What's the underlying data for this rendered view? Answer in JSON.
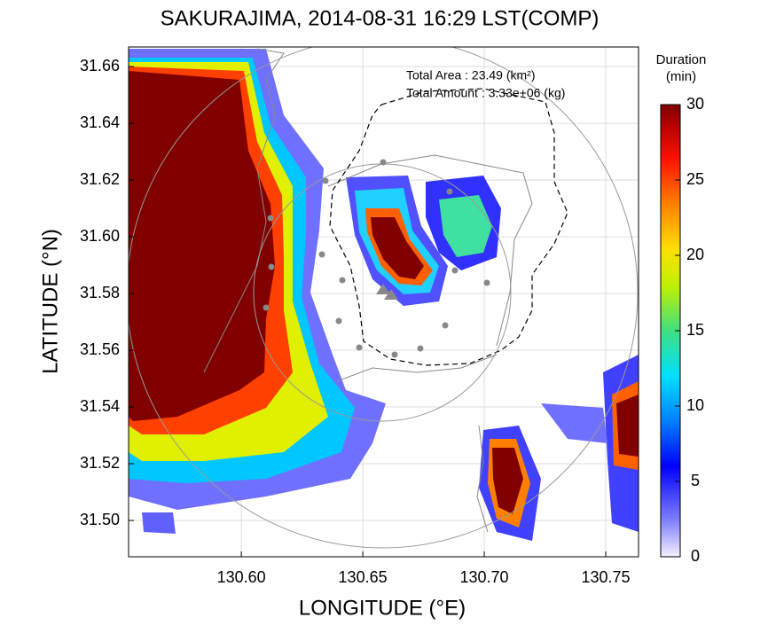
{
  "chart_data": {
    "type": "map",
    "title": "SAKURAJIMA, 2014-08-31 16:29 LST(COMP)",
    "xlabel": "LONGITUDE (°E)",
    "ylabel": "LATITUDE (°N)",
    "xlim": [
      130.5536,
      130.7635
    ],
    "ylim": [
      31.4872,
      31.6669
    ],
    "xticks": [
      {
        "value": 130.6,
        "label": "130.60"
      },
      {
        "value": 130.65,
        "label": "130.65"
      },
      {
        "value": 130.7,
        "label": "130.70"
      },
      {
        "value": 130.75,
        "label": "130.75"
      }
    ],
    "yticks": [
      {
        "value": 31.5,
        "label": "31.50"
      },
      {
        "value": 31.52,
        "label": "31.52"
      },
      {
        "value": 31.54,
        "label": "31.54"
      },
      {
        "value": 31.56,
        "label": "31.56"
      },
      {
        "value": 31.58,
        "label": "31.58"
      },
      {
        "value": 31.6,
        "label": "31.60"
      },
      {
        "value": 31.62,
        "label": "31.62"
      },
      {
        "value": 31.64,
        "label": "31.64"
      },
      {
        "value": 31.66,
        "label": "31.66"
      }
    ],
    "grid": true,
    "annotations": [
      "Total Area   : 23.49 (km²)",
      "Total Amount : 3.33e+06 (kg)"
    ],
    "colorbar": {
      "title": [
        "Duration",
        "(min)"
      ],
      "lim": [
        0,
        30
      ],
      "ticks": [
        0,
        5,
        10,
        15,
        20,
        25,
        30
      ]
    }
  }
}
